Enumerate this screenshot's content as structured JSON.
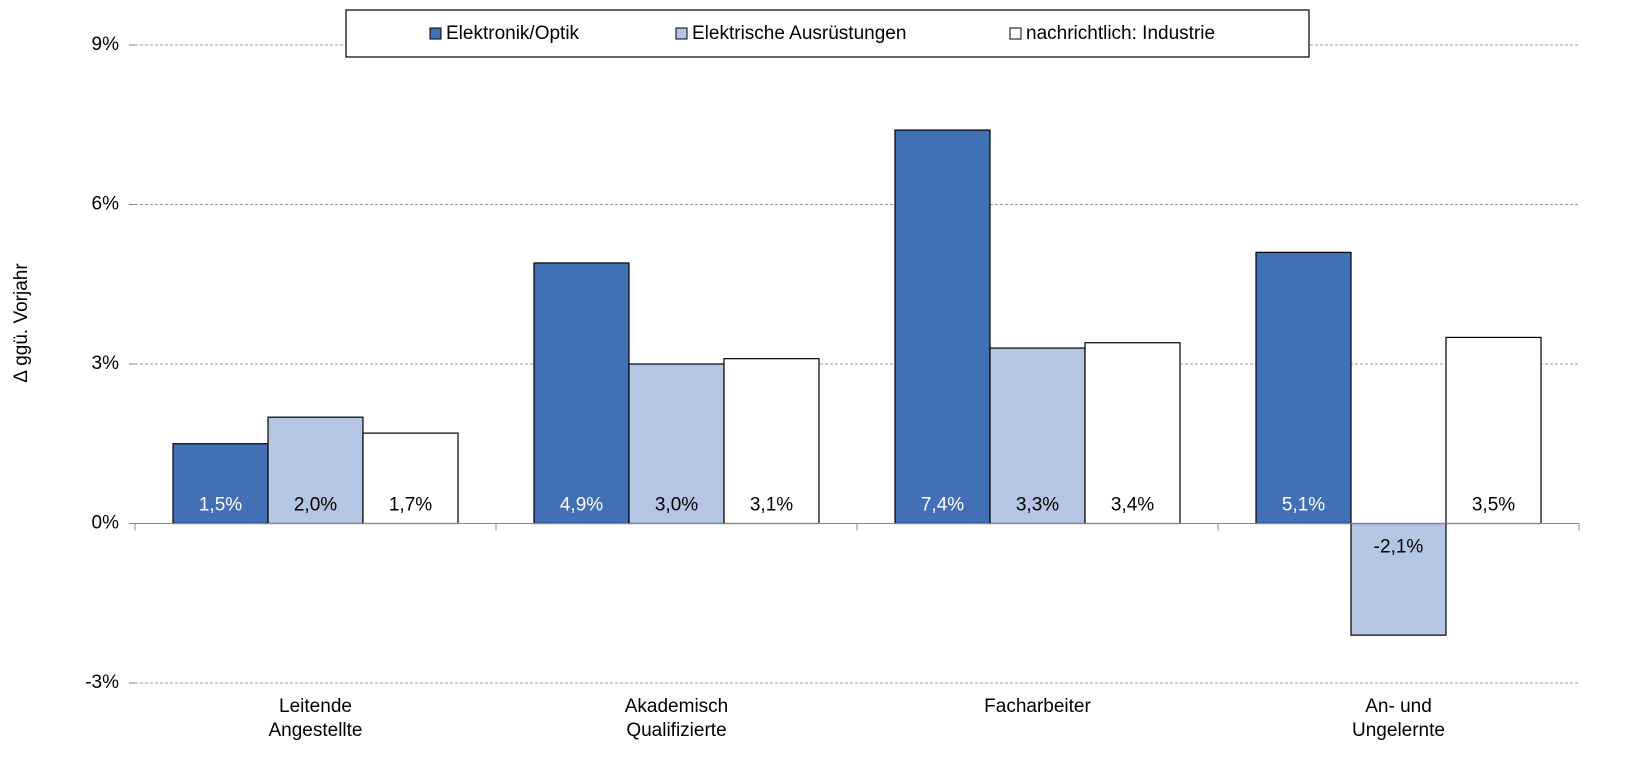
{
  "chart_data": {
    "type": "bar",
    "y_label": "Δ ggü. Vorjahr",
    "categories": [
      "Leitende\nAngestellte",
      "Akademisch\nQualifizierte",
      "Facharbeiter",
      "An- und\nUngelernte"
    ],
    "series": [
      {
        "name": "Elektronik/Optik",
        "color": "#4270b4",
        "values": [
          1.5,
          4.9,
          7.4,
          5.1
        ],
        "value_labels": [
          "1,5%",
          "4,9%",
          "7,4%",
          "5,1%"
        ]
      },
      {
        "name": "Elektrische Ausrüstungen",
        "color": "#b4c6e4",
        "values": [
          2.0,
          3.0,
          3.3,
          -2.1
        ],
        "value_labels": [
          "2,0%",
          "3,0%",
          "3,3%",
          "-2,1%"
        ]
      },
      {
        "name": "nachrichtlich: Industrie",
        "color": "#ffffff",
        "values": [
          1.7,
          3.1,
          3.4,
          3.5
        ],
        "value_labels": [
          "1,7%",
          "3,1%",
          "3,4%",
          "3,5%"
        ]
      }
    ],
    "ylim": [
      -3,
      9
    ],
    "yticks": [
      {
        "value": -3,
        "label": "-3%"
      },
      {
        "value": 0,
        "label": "0%"
      },
      {
        "value": 3,
        "label": "3%"
      },
      {
        "value": 6,
        "label": "6%"
      },
      {
        "value": 9,
        "label": "9%"
      }
    ],
    "grid": true
  }
}
